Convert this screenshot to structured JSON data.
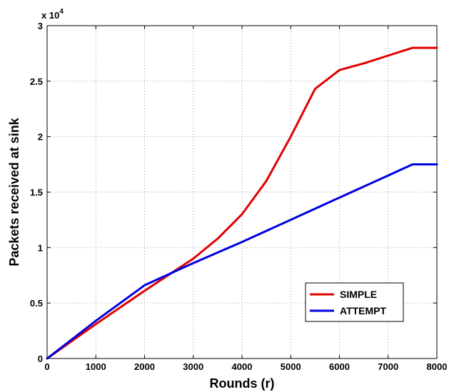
{
  "chart_data": {
    "type": "line",
    "title": "",
    "xlabel": "Rounds (r)",
    "ylabel": "Packets received at sink",
    "y_multiplier_label": "x 10",
    "y_multiplier_exponent": "4",
    "xlim": [
      0,
      8000
    ],
    "ylim": [
      0,
      3
    ],
    "x_ticks": [
      "0",
      "1000",
      "2000",
      "3000",
      "4000",
      "5000",
      "6000",
      "7000",
      "8000"
    ],
    "y_ticks": [
      "0",
      "0.5",
      "1",
      "1.5",
      "2",
      "2.5",
      "3"
    ],
    "grid": true,
    "legend_position": "lower-right",
    "series": [
      {
        "name": "SIMPLE",
        "color": "#e00000",
        "x": [
          0,
          1000,
          2000,
          3000,
          3500,
          4000,
          4500,
          5000,
          5500,
          6000,
          6500,
          7000,
          7500,
          8000
        ],
        "y": [
          0,
          0.31,
          0.61,
          0.9,
          1.08,
          1.3,
          1.6,
          2.0,
          2.43,
          2.6,
          2.66,
          2.73,
          2.8,
          2.8
        ]
      },
      {
        "name": "ATTEMPT",
        "color": "#0000e0",
        "x": [
          0,
          1000,
          2000,
          2200,
          3000,
          4000,
          5000,
          6000,
          7000,
          7500,
          8000
        ],
        "y": [
          0,
          0.34,
          0.66,
          0.7,
          0.86,
          1.05,
          1.25,
          1.45,
          1.65,
          1.75,
          1.75
        ]
      }
    ]
  }
}
